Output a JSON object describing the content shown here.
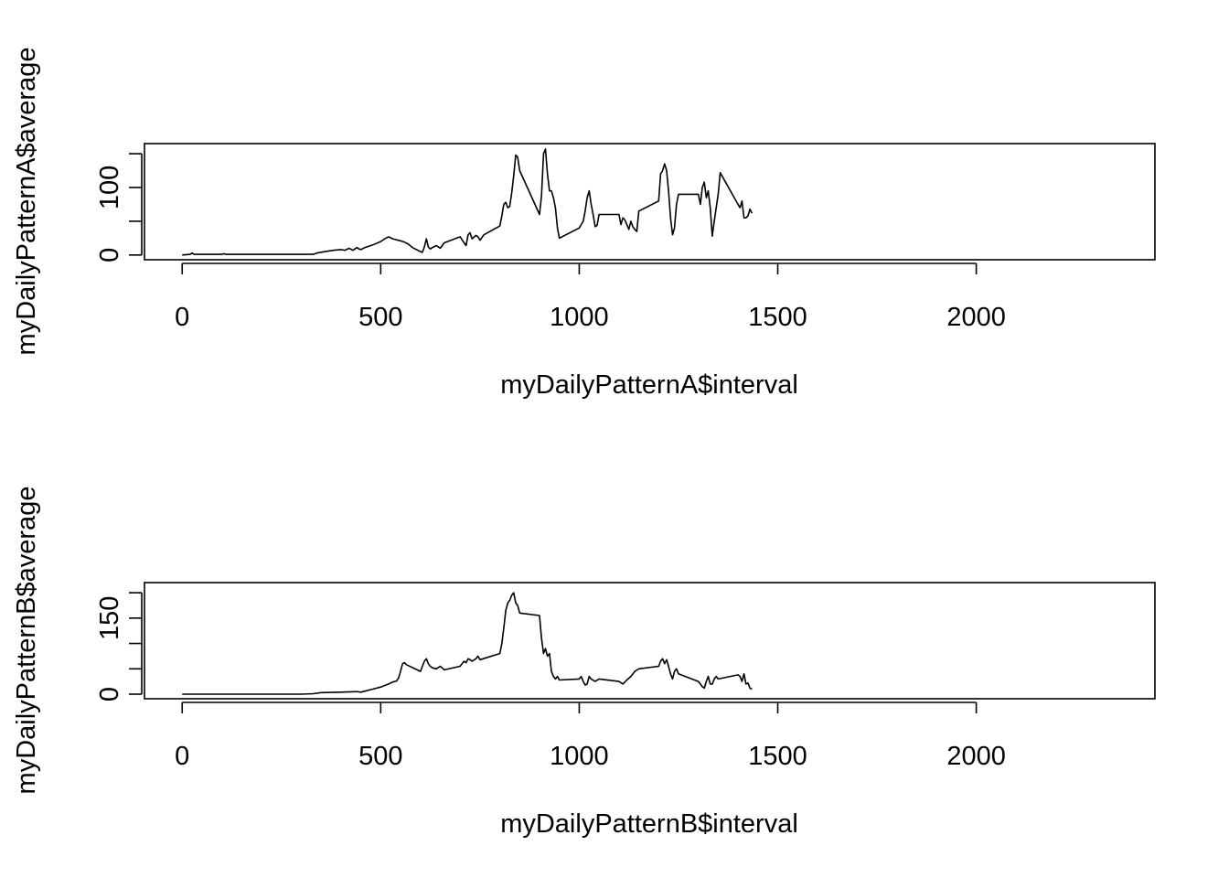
{
  "chart_data": [
    {
      "type": "line",
      "xlabel": "myDailyPatternA$interval",
      "ylabel": "myDailyPatternA$average",
      "xlim": [
        -95,
        2450
      ],
      "ylim": [
        -7,
        165
      ],
      "xticks": [
        0,
        500,
        1000,
        1500,
        2000
      ],
      "yticks": [
        0,
        50,
        100,
        150
      ],
      "ytick_labels": [
        "0",
        "",
        "100",
        ""
      ],
      "grid": false,
      "series": [
        {
          "x": [
            0,
            20,
            25,
            30,
            100,
            105,
            110,
            330,
            340,
            360,
            380,
            400,
            410,
            420,
            430,
            440,
            445,
            450,
            460,
            470,
            480,
            500,
            510,
            520,
            530,
            550,
            560,
            570,
            580,
            600,
            605,
            610,
            615,
            620,
            625,
            630,
            640,
            650,
            660,
            700,
            710,
            715,
            720,
            725,
            730,
            740,
            745,
            750,
            760,
            800,
            805,
            810,
            815,
            820,
            825,
            830,
            835,
            840,
            845,
            850,
            900,
            905,
            910,
            915,
            920,
            925,
            930,
            935,
            940,
            945,
            950,
            1000,
            1010,
            1015,
            1020,
            1025,
            1030,
            1035,
            1040,
            1045,
            1050,
            1055,
            1100,
            1105,
            1110,
            1115,
            1120,
            1125,
            1130,
            1135,
            1140,
            1145,
            1150,
            1200,
            1205,
            1210,
            1215,
            1220,
            1225,
            1230,
            1235,
            1240,
            1245,
            1250,
            1300,
            1305,
            1310,
            1315,
            1320,
            1325,
            1330,
            1335,
            1340,
            1345,
            1350,
            1355,
            1400,
            1405,
            1410,
            1415,
            1420,
            1425,
            1430,
            1435
          ],
          "y": [
            0,
            1,
            3,
            1,
            1,
            2,
            1,
            1,
            3,
            5,
            7,
            8,
            7,
            10,
            7,
            11,
            9,
            8,
            11,
            13,
            15,
            20,
            24,
            27,
            24,
            21,
            19,
            16,
            11,
            5,
            4,
            12,
            24,
            12,
            9,
            11,
            14,
            10,
            18,
            27,
            18,
            14,
            30,
            33,
            24,
            29,
            27,
            22,
            30,
            43,
            58,
            75,
            78,
            70,
            72,
            92,
            118,
            148,
            145,
            125,
            60,
            88,
            150,
            157,
            120,
            95,
            95,
            85,
            70,
            40,
            25,
            40,
            50,
            65,
            85,
            95,
            75,
            60,
            42,
            44,
            60,
            60,
            60,
            45,
            55,
            52,
            45,
            38,
            50,
            42,
            38,
            35,
            65,
            80,
            120,
            125,
            135,
            125,
            95,
            55,
            30,
            40,
            75,
            90,
            90,
            75,
            100,
            108,
            85,
            95,
            70,
            28,
            50,
            70,
            90,
            122,
            75,
            70,
            80,
            55,
            55,
            58,
            68,
            62
          ]
        }
      ]
    },
    {
      "type": "line",
      "xlabel": "myDailyPatternB$interval",
      "ylabel": "myDailyPatternB$average",
      "xlim": [
        -95,
        2450
      ],
      "ylim": [
        -9,
        220
      ],
      "xticks": [
        0,
        500,
        1000,
        1500,
        2000
      ],
      "yticks": [
        0,
        50,
        100,
        150,
        200
      ],
      "ytick_labels": [
        "0",
        "",
        "",
        "150",
        ""
      ],
      "grid": false,
      "series": [
        {
          "x": [
            0,
            100,
            200,
            300,
            330,
            350,
            400,
            440,
            450,
            460,
            480,
            500,
            520,
            530,
            540,
            545,
            550,
            555,
            560,
            565,
            600,
            605,
            610,
            615,
            620,
            625,
            630,
            640,
            650,
            660,
            700,
            705,
            710,
            715,
            720,
            725,
            730,
            740,
            745,
            750,
            800,
            805,
            810,
            815,
            820,
            825,
            830,
            835,
            840,
            845,
            850,
            900,
            905,
            910,
            915,
            920,
            925,
            930,
            935,
            940,
            945,
            950,
            1000,
            1005,
            1010,
            1015,
            1020,
            1025,
            1030,
            1040,
            1050,
            1100,
            1110,
            1120,
            1130,
            1140,
            1150,
            1200,
            1205,
            1210,
            1215,
            1220,
            1225,
            1230,
            1235,
            1240,
            1245,
            1250,
            1300,
            1305,
            1310,
            1315,
            1320,
            1325,
            1330,
            1335,
            1340,
            1345,
            1350,
            1400,
            1405,
            1410,
            1415,
            1420,
            1425,
            1430,
            1435
          ],
          "y": [
            0,
            0,
            0,
            0,
            1,
            3,
            4,
            5,
            4,
            6,
            10,
            14,
            20,
            24,
            26,
            32,
            45,
            60,
            62,
            58,
            45,
            55,
            65,
            70,
            60,
            55,
            52,
            50,
            55,
            48,
            55,
            60,
            65,
            62,
            70,
            68,
            65,
            70,
            75,
            68,
            80,
            100,
            130,
            165,
            180,
            185,
            195,
            200,
            180,
            175,
            160,
            155,
            110,
            80,
            90,
            75,
            80,
            45,
            35,
            30,
            35,
            28,
            30,
            35,
            25,
            18,
            20,
            35,
            30,
            25,
            30,
            25,
            20,
            28,
            35,
            45,
            50,
            55,
            65,
            70,
            60,
            68,
            55,
            40,
            30,
            45,
            50,
            40,
            25,
            20,
            15,
            12,
            25,
            35,
            20,
            20,
            30,
            35,
            30,
            38,
            35,
            25,
            40,
            20,
            22,
            12,
            10
          ]
        }
      ]
    }
  ]
}
